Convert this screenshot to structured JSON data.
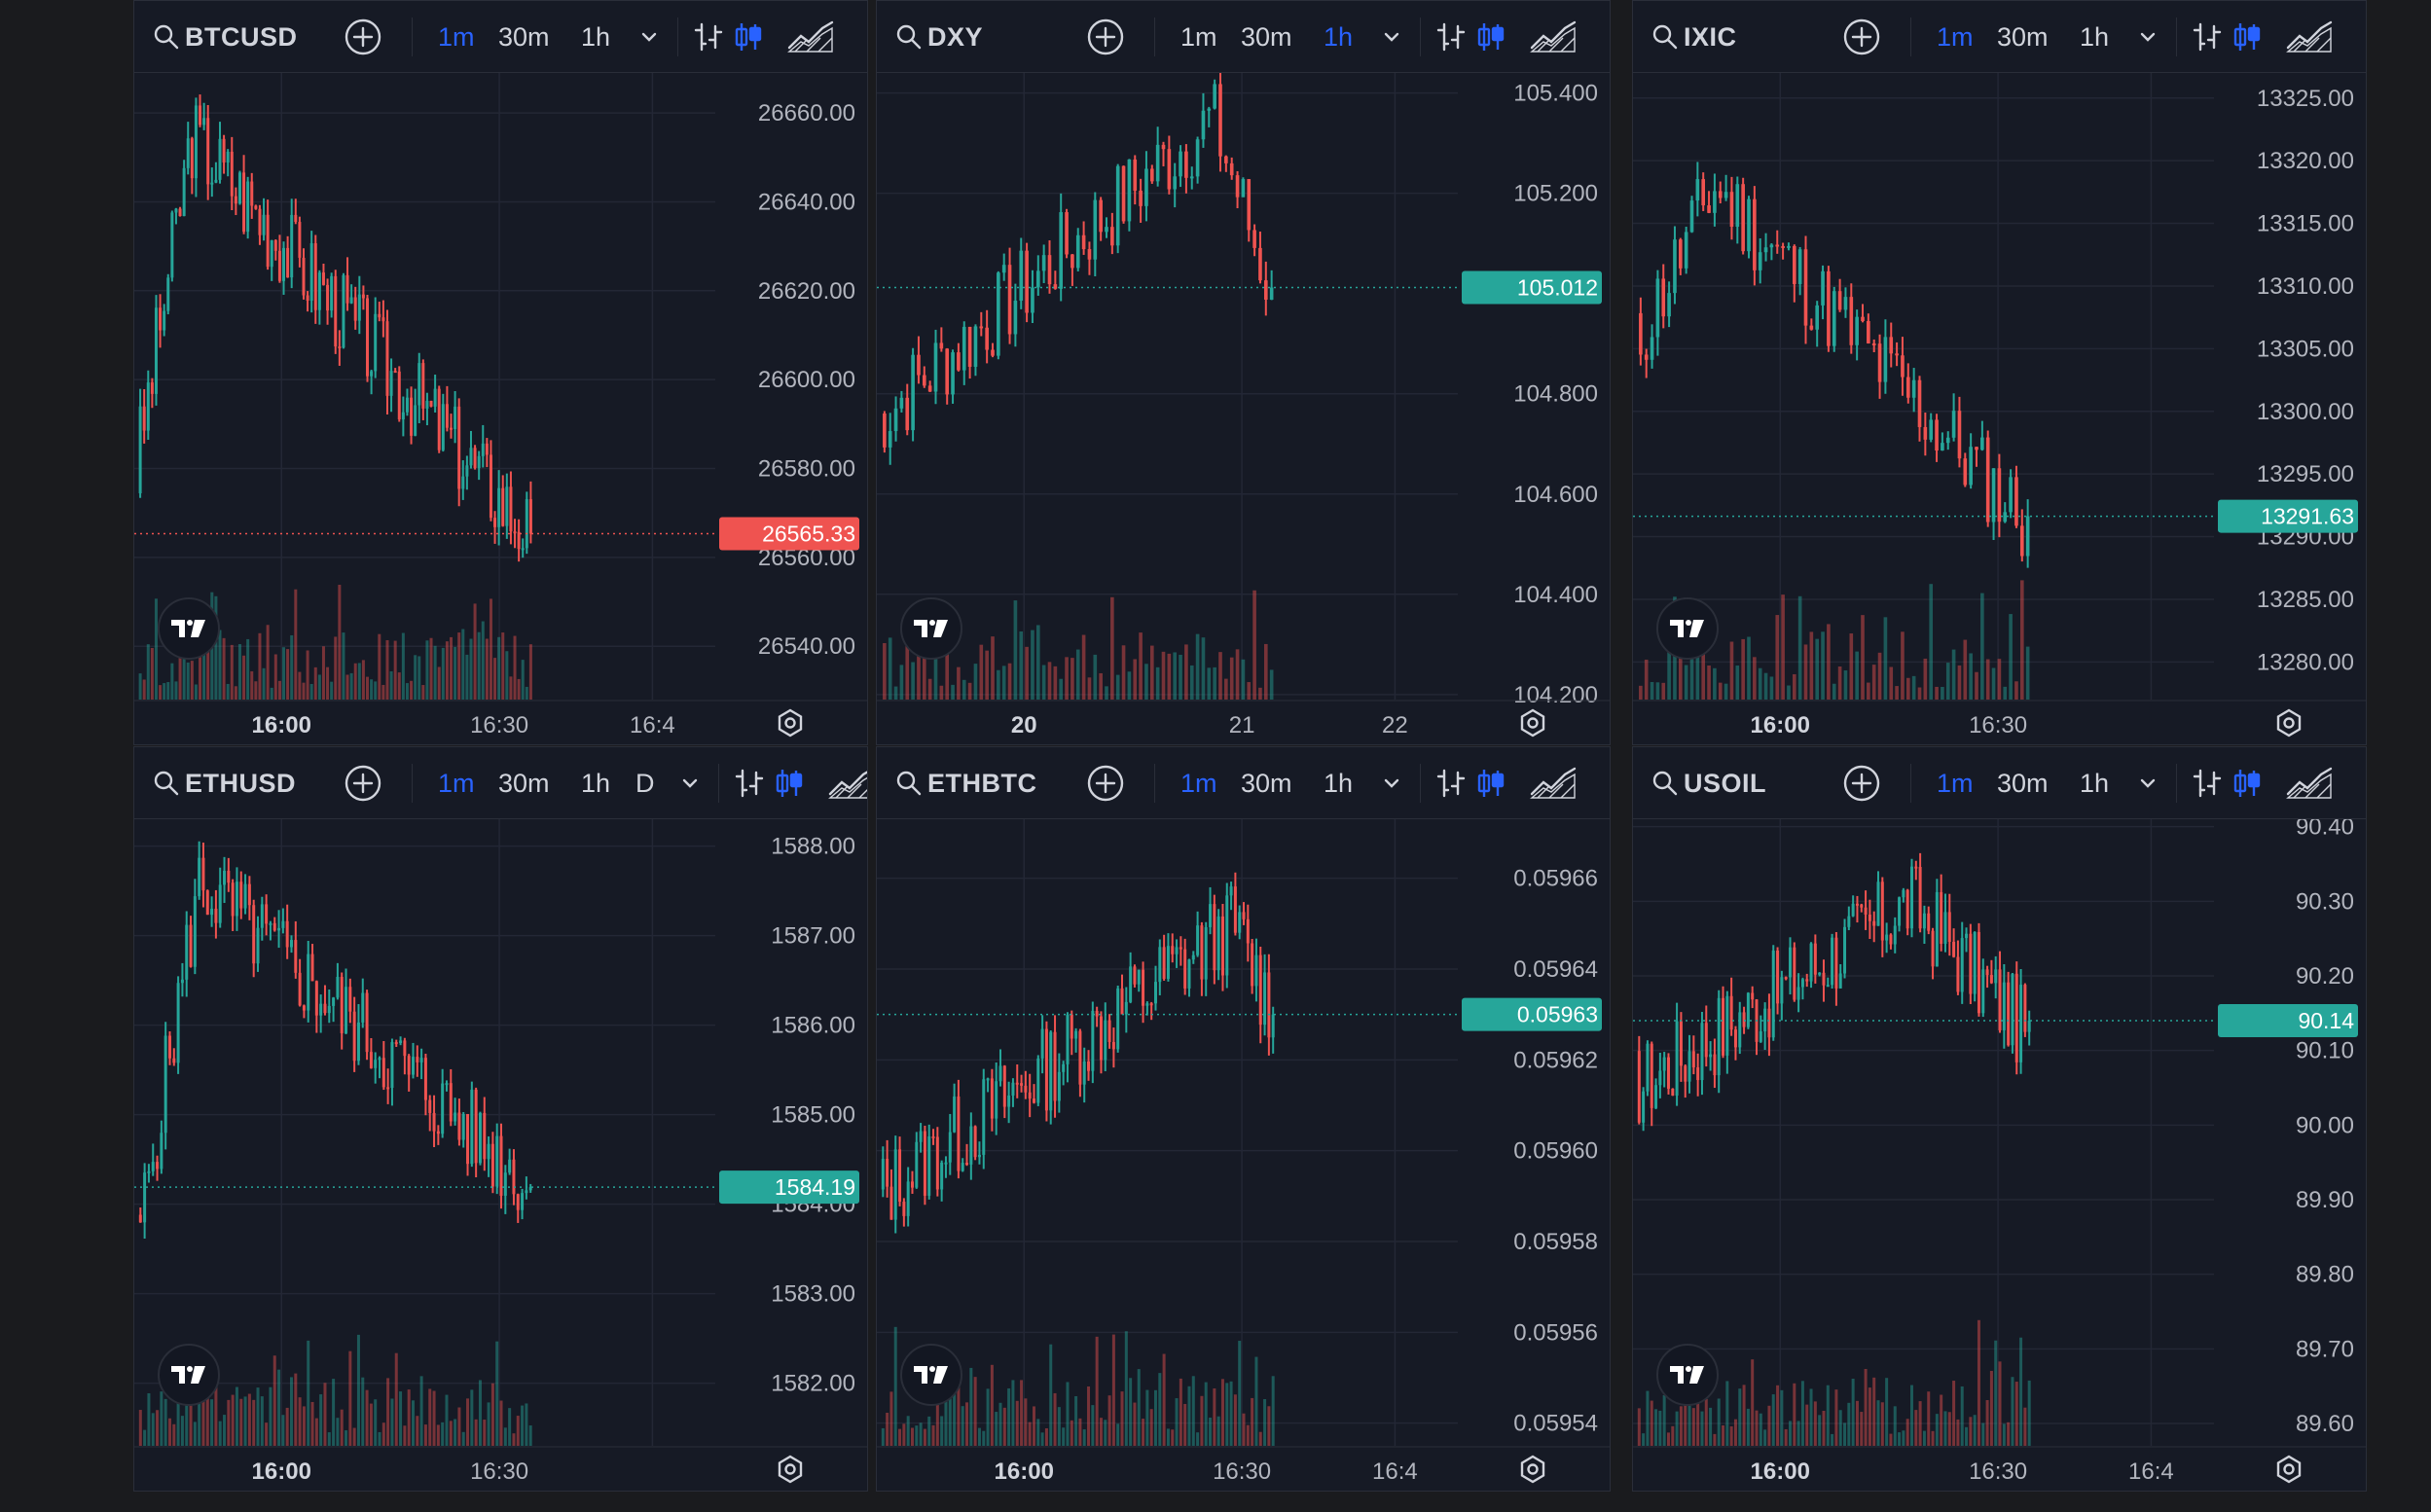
{
  "colors": {
    "background": "#161a25",
    "grid": "#232735",
    "up": "#26a69a",
    "down": "#ef5350",
    "accent": "#2962ff",
    "text": "#b2b5be"
  },
  "panels": [
    {
      "symbol": "BTCUSD",
      "intervals": [
        "1m",
        "30m",
        "1h"
      ],
      "active_interval": "1m",
      "extra_interval": "",
      "price_labels": [
        "26660.00",
        "26640.00",
        "26620.00",
        "26600.00",
        "26580.00",
        "26560.00",
        "26540.00"
      ],
      "price_values": [
        26660,
        26640,
        26620,
        26600,
        26580,
        26560,
        26540
      ],
      "price_range": [
        26528,
        26669
      ],
      "current_price": "26565.33",
      "current_value": 26565.33,
      "current_dir": "down",
      "time_labels": [
        "16:00",
        "16:30",
        "16:4"
      ],
      "icons": [
        "search-icon",
        "add-icon",
        "chevron-down-icon",
        "bar-style-icon",
        "candles-icon",
        "area-chart-icon",
        "settings-icon",
        "tradingview-logo"
      ],
      "series": {
        "start": 26580,
        "peak_pos": 0.14,
        "peak": 26655,
        "end": 26565,
        "seed": 3,
        "count": 100
      }
    },
    {
      "symbol": "DXY",
      "intervals": [
        "1m",
        "30m",
        "1h"
      ],
      "active_interval": "1h",
      "extra_interval": "",
      "price_labels": [
        "105.400",
        "105.200",
        "105.012",
        "104.800",
        "104.600",
        "104.400",
        "104.200"
      ],
      "price_values": [
        105.4,
        105.2,
        105.012,
        104.8,
        104.6,
        104.4,
        104.2
      ],
      "price_range": [
        104.19,
        105.44
      ],
      "current_price": "105.012",
      "current_value": 105.012,
      "current_dir": "up",
      "time_labels": [
        "20",
        "21",
        "22"
      ],
      "icons": [
        "search-icon",
        "add-icon",
        "chevron-down-icon",
        "bar-style-icon",
        "candles-icon",
        "area-chart-icon",
        "settings-icon",
        "tradingview-logo"
      ],
      "series": {
        "start": 104.75,
        "peak_pos": 0.85,
        "peak": 105.35,
        "end": 105.0,
        "seed": 7,
        "count": 70
      }
    },
    {
      "symbol": "IXIC",
      "intervals": [
        "1m",
        "30m",
        "1h"
      ],
      "active_interval": "1m",
      "extra_interval": "",
      "price_labels": [
        "13325.00",
        "13320.00",
        "13315.00",
        "13310.00",
        "13305.00",
        "13300.00",
        "13295.00",
        "13290.00",
        "13285.00",
        "13280.00"
      ],
      "price_values": [
        13325,
        13320,
        13315,
        13310,
        13305,
        13300,
        13295,
        13290,
        13285,
        13280
      ],
      "price_range": [
        13277,
        13327
      ],
      "current_price": "13291.63",
      "current_value": 13291.63,
      "current_dir": "up",
      "time_labels": [
        "16:00",
        "16:30"
      ],
      "icons": [
        "search-icon",
        "add-icon",
        "chevron-down-icon",
        "bar-style-icon",
        "candles-icon",
        "area-chart-icon",
        "settings-icon",
        "tradingview-logo"
      ],
      "series": {
        "start": 13305,
        "peak_pos": 0.2,
        "peak": 13318,
        "end": 13291,
        "seed": 11,
        "count": 70
      }
    },
    {
      "symbol": "ETHUSD",
      "intervals": [
        "1m",
        "30m",
        "1h"
      ],
      "active_interval": "1m",
      "extra_interval": "D",
      "price_labels": [
        "1588.00",
        "1587.00",
        "1586.00",
        "1585.00",
        "1584.00",
        "1583.00",
        "1582.00"
      ],
      "price_values": [
        1588,
        1587,
        1586,
        1585,
        1584,
        1583,
        1582
      ],
      "price_range": [
        1581.3,
        1588.3
      ],
      "current_price": "1584.19",
      "current_value": 1584.19,
      "current_dir": "up",
      "time_labels": [
        "16:00",
        "16:30"
      ],
      "icons": [
        "search-icon",
        "add-icon",
        "chevron-down-icon",
        "bar-style-icon",
        "candles-icon",
        "area-chart-icon",
        "settings-icon",
        "tradingview-logo"
      ],
      "series": {
        "start": 1583.5,
        "peak_pos": 0.16,
        "peak": 1587.6,
        "end": 1584.2,
        "seed": 5,
        "count": 95
      }
    },
    {
      "symbol": "ETHBTC",
      "intervals": [
        "1m",
        "30m",
        "1h"
      ],
      "active_interval": "1m",
      "extra_interval": "",
      "price_labels": [
        "0.05966",
        "0.05964",
        "0.05963",
        "0.05962",
        "0.05960",
        "0.05958",
        "0.05956",
        "0.05954"
      ],
      "price_values": [
        0.05966,
        0.05964,
        0.05963,
        0.05962,
        0.0596,
        0.05958,
        0.05956,
        0.05954
      ],
      "price_range": [
        0.059535,
        0.059673
      ],
      "current_price": "0.05963",
      "current_value": 0.05963,
      "current_dir": "up",
      "time_labels": [
        "16:00",
        "16:30",
        "16:4"
      ],
      "icons": [
        "search-icon",
        "add-icon",
        "chevron-down-icon",
        "bar-style-icon",
        "candles-icon",
        "area-chart-icon",
        "settings-icon",
        "tradingview-logo"
      ],
      "series": {
        "start": 0.05959,
        "peak_pos": 0.9,
        "peak": 0.05965,
        "end": 0.05963,
        "seed": 13,
        "count": 95
      }
    },
    {
      "symbol": "USOIL",
      "intervals": [
        "1m",
        "30m",
        "1h"
      ],
      "active_interval": "1m",
      "extra_interval": "",
      "price_labels": [
        "90.40",
        "90.30",
        "90.20",
        "90.14",
        "90.10",
        "90.00",
        "89.90",
        "89.80",
        "89.70",
        "89.60"
      ],
      "price_values": [
        90.4,
        90.3,
        90.2,
        90.14,
        90.1,
        90.0,
        89.9,
        89.8,
        89.7,
        89.6
      ],
      "price_range": [
        89.57,
        90.41
      ],
      "current_price": "90.14",
      "current_value": 90.14,
      "current_dir": "up",
      "time_labels": [
        "16:00",
        "16:30",
        "16:4"
      ],
      "icons": [
        "search-icon",
        "add-icon",
        "chevron-down-icon",
        "bar-style-icon",
        "candles-icon",
        "area-chart-icon",
        "settings-icon",
        "tradingview-logo"
      ],
      "series": {
        "start": 90.05,
        "peak_pos": 0.7,
        "peak": 90.3,
        "end": 90.12,
        "seed": 17,
        "count": 95
      }
    }
  ]
}
